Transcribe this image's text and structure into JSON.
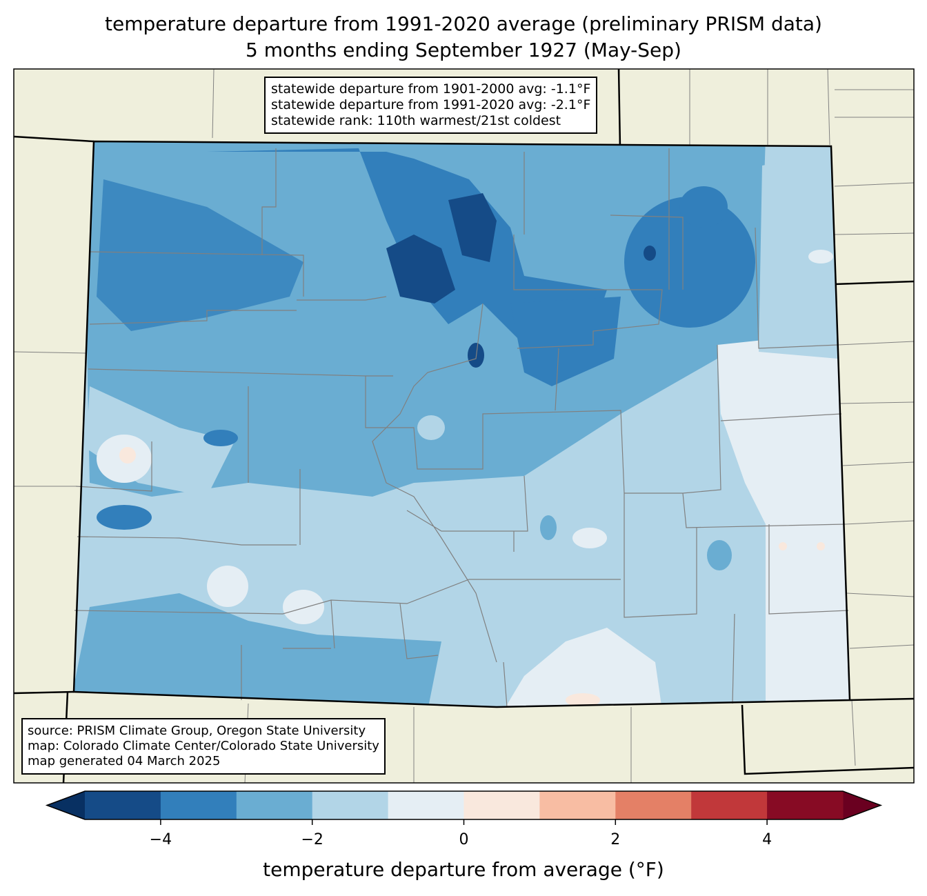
{
  "title": {
    "line1": "temperature departure from 1991-2020 average (preliminary PRISM data)",
    "line2": "5 months ending September 1927 (May-Sep)"
  },
  "stats_box": {
    "line1": "statewide departure from 1901-2000 avg: -1.1°F",
    "line2": "statewide departure from 1991-2020 avg: -2.1°F",
    "line3": "statewide rank: 110th warmest/21st coldest"
  },
  "credits_box": {
    "line1": "source: PRISM Climate Group, Oregon State University",
    "line2": "map: Colorado Climate Center/Colorado State University",
    "line3": "map generated 04 March 2025"
  },
  "colorbar": {
    "label": "temperature departure from average (°F)",
    "range": [
      -5,
      5
    ],
    "levels": [
      -5,
      -4,
      -3,
      -2,
      -1,
      0,
      1,
      2,
      3,
      4,
      5
    ],
    "colors": [
      "#154b87",
      "#327fbb",
      "#6aadd2",
      "#b2d5e7",
      "#e5eef4",
      "#f9e8dd",
      "#f8bda3",
      "#e48066",
      "#c1383a",
      "#870b24"
    ],
    "under_color": "#083062",
    "over_color": "#6a0020",
    "ticks": [
      {
        "value": -4,
        "label": "−4"
      },
      {
        "value": -2,
        "label": "−2"
      },
      {
        "value": 0,
        "label": "0"
      },
      {
        "value": 2,
        "label": "2"
      },
      {
        "value": 4,
        "label": "4"
      }
    ]
  },
  "map_colors": {
    "land": "#efefdc",
    "county_lines": "#808080",
    "state_lines": "#000000"
  }
}
